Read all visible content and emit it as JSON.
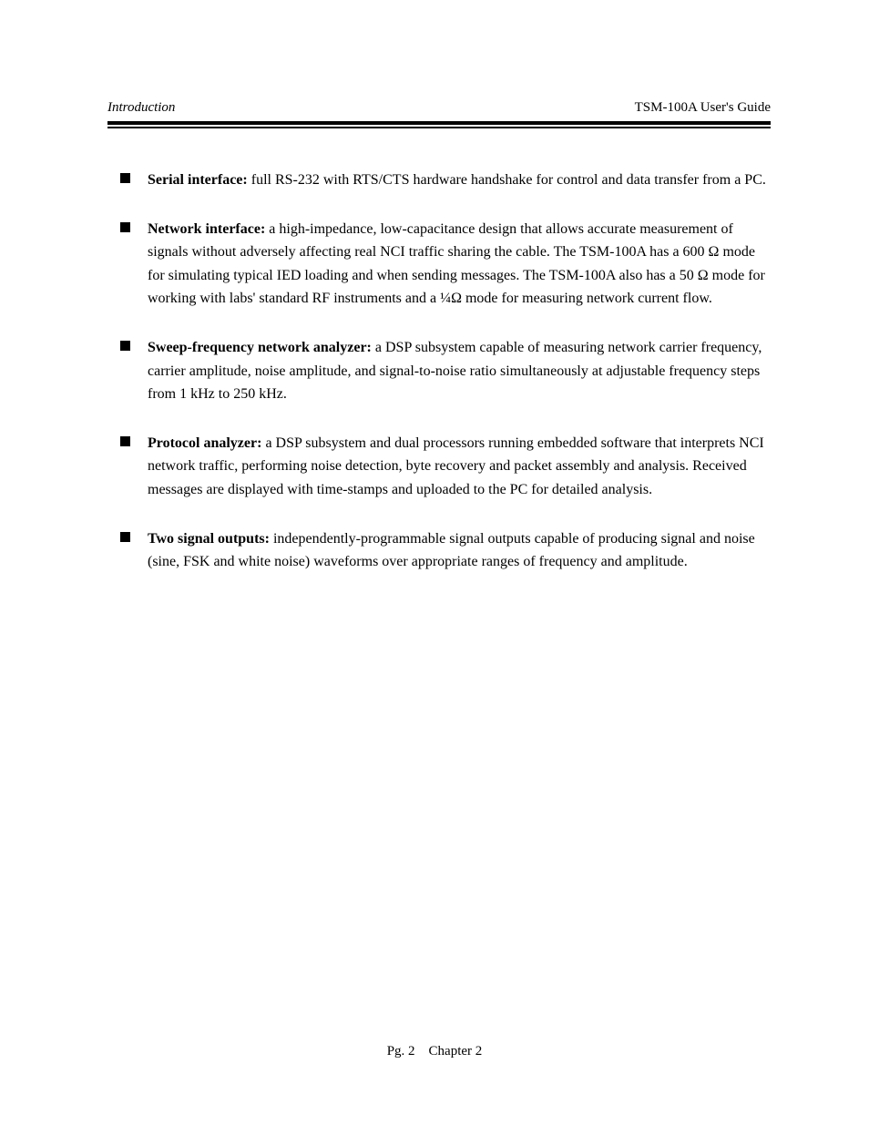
{
  "header": {
    "left": "Introduction",
    "right": "TSM-100A User's Guide"
  },
  "items": [
    {
      "title": "Serial interface:",
      "body": "full RS-232 with RTS/CTS hardware handshake for control and data transfer from a PC."
    },
    {
      "title": "Network interface:",
      "body": "a high-impedance, low-capacitance design that allows accurate measurement of signals without adversely affecting real NCI traffic sharing the cable. The TSM-100A has a 600 Ω mode for simulating typical IED loading and when sending messages. The TSM-100A also has a 50 Ω mode for working with labs' standard RF instruments and a ¼Ω mode for measuring network current flow."
    },
    {
      "title": "Sweep-frequency network analyzer:",
      "body": "a DSP subsystem capable of measuring network carrier frequency, carrier amplitude, noise amplitude, and signal-to-noise ratio simultaneously at adjustable frequency steps from 1 kHz to 250 kHz."
    },
    {
      "title": "Protocol analyzer:",
      "body": "a DSP subsystem and dual processors running embedded software that interprets NCI network traffic, performing noise detection, byte recovery and packet assembly and analysis. Received messages are displayed with time-stamps and uploaded to the PC for detailed analysis."
    },
    {
      "title": "Two signal outputs:",
      "body": "independently-programmable signal outputs capable of producing signal and noise (sine, FSK and white noise) waveforms over appropriate ranges of frequency and amplitude."
    }
  ],
  "footer": {
    "pg": "Pg. 2",
    "chapter": "Chapter 2"
  }
}
